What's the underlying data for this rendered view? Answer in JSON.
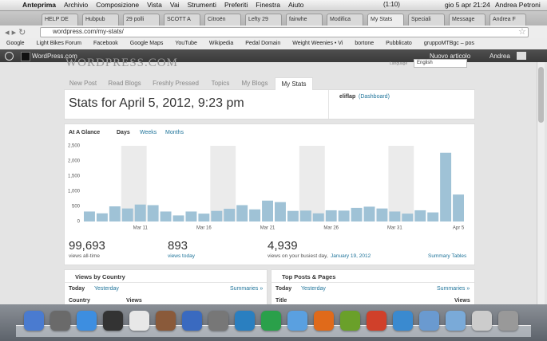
{
  "menubar": {
    "app": "Anteprima",
    "items": [
      "Archivio",
      "Composizione",
      "Vista",
      "Vai",
      "Strumenti",
      "Preferiti",
      "Finestra",
      "Aiuto"
    ],
    "battery": "(1:10)",
    "clock": "gio 5 apr 21:24",
    "user": "Andrea Petroni"
  },
  "browser": {
    "tabs": [
      "HELP DE",
      "Hubpub",
      "29 polli",
      "SCOTT A",
      "Citroën",
      "Lefty 29",
      "fairwhe",
      "Modifica",
      "My Stats",
      "Speciali",
      "Message",
      "Andrea F"
    ],
    "active_tab": 8,
    "url": "wordpress.com/my-stats/",
    "bookmarks": [
      "Google",
      "Light Bikes Forum",
      "Facebook",
      "Google Maps",
      "YouTube",
      "Wikipedia",
      "Pedal Domain",
      "Weight Weenies • Vi",
      "bortone",
      "Pubblicato",
      "gruppoMTBgc – pos"
    ]
  },
  "admin_bar": {
    "site": "WordPress.com",
    "new_post": "Nuovo articolo",
    "user": "Andrea"
  },
  "header": {
    "logo": "WORDPRESS.COM",
    "language_label": "Language",
    "language": "English",
    "nav": [
      "New Post",
      "Read Blogs",
      "Freshly Pressed",
      "Topics",
      "My Blogs",
      "My Stats"
    ],
    "active_nav": 5
  },
  "stats": {
    "title": "Stats for April 5, 2012, 9:23 pm",
    "blog": "eliflap",
    "dashboard": "(Dashboard)"
  },
  "glance": {
    "title": "At A Glance",
    "periods": [
      "Days",
      "Weeks",
      "Months"
    ]
  },
  "chart_data": {
    "type": "bar",
    "color": "#9fc2d6",
    "categories": [
      null,
      null,
      null,
      null,
      "Mar 11",
      null,
      null,
      null,
      null,
      "Mar 16",
      null,
      null,
      null,
      null,
      "Mar 21",
      null,
      null,
      null,
      null,
      "Mar 26",
      null,
      null,
      null,
      null,
      "Mar 31",
      null,
      null,
      null,
      null,
      "Apr 5"
    ],
    "values": [
      330,
      270,
      500,
      430,
      560,
      540,
      330,
      200,
      330,
      260,
      350,
      420,
      540,
      400,
      690,
      640,
      350,
      360,
      270,
      370,
      360,
      450,
      490,
      430,
      330,
      260,
      370,
      300,
      2270,
      890
    ],
    "ylim": [
      0,
      2500
    ],
    "yticks": [
      0,
      500,
      {
        "value": 1000,
        "label": "1,000"
      },
      {
        "value": 1500,
        "label": "1,500"
      },
      {
        "value": 2000,
        "label": "2,000"
      },
      {
        "value": 2500,
        "label": "2,500"
      }
    ],
    "grid": false
  },
  "summary": [
    {
      "value": "99,693",
      "label": "views all-time"
    },
    {
      "value": "893",
      "label": "views today"
    },
    {
      "value": "4,939",
      "label": "views on your busiest day,",
      "link": "January 19, 2012"
    }
  ],
  "summary_link": "Summary Tables",
  "panels": [
    {
      "title": "Views by Country",
      "tabs": [
        "Today",
        "Yesterday"
      ],
      "more": "Summaries »",
      "columns": [
        "Country",
        "Views"
      ]
    },
    {
      "title": "Top Posts & Pages",
      "tabs": [
        "Today",
        "Yesterday"
      ],
      "more": "Summaries »",
      "columns": [
        "Title",
        "Views"
      ]
    }
  ]
}
